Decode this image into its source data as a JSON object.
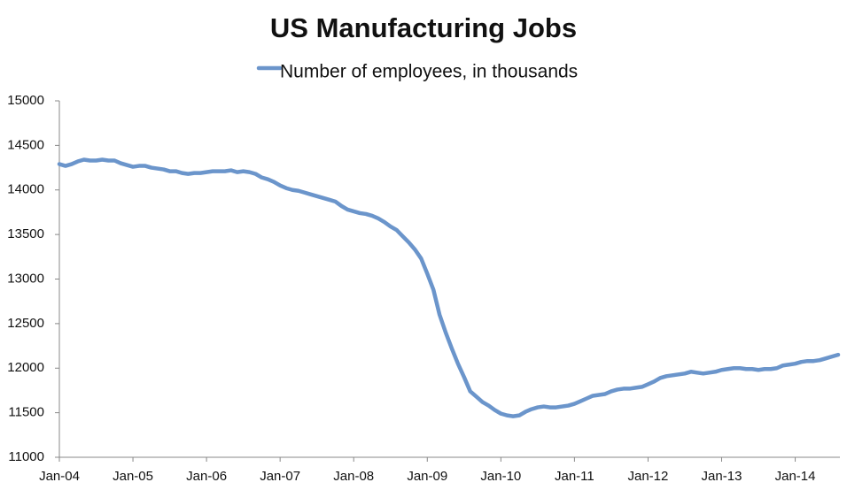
{
  "chart_data": {
    "type": "line",
    "title": "US Manufacturing Jobs",
    "categories": [
      "Jan-04",
      null,
      null,
      null,
      null,
      null,
      null,
      null,
      null,
      null,
      null,
      null,
      "Jan-05",
      null,
      null,
      null,
      null,
      null,
      null,
      null,
      null,
      null,
      null,
      null,
      "Jan-06",
      null,
      null,
      null,
      null,
      null,
      null,
      null,
      null,
      null,
      null,
      null,
      "Jan-07",
      null,
      null,
      null,
      null,
      null,
      null,
      null,
      null,
      null,
      null,
      null,
      "Jan-08",
      null,
      null,
      null,
      null,
      null,
      null,
      null,
      null,
      null,
      null,
      null,
      "Jan-09",
      null,
      null,
      null,
      null,
      null,
      null,
      null,
      null,
      null,
      null,
      null,
      "Jan-10",
      null,
      null,
      null,
      null,
      null,
      null,
      null,
      null,
      null,
      null,
      null,
      "Jan-11",
      null,
      null,
      null,
      null,
      null,
      null,
      null,
      null,
      null,
      null,
      null,
      "Jan-12",
      null,
      null,
      null,
      null,
      null,
      null,
      null,
      null,
      null,
      null,
      null,
      "Jan-13",
      null,
      null,
      null,
      null,
      null,
      null,
      null,
      null,
      null,
      null,
      null,
      "Jan-14",
      null,
      null,
      null,
      null,
      null,
      null,
      null
    ],
    "series": [
      {
        "name": "Number of employees, in thousands",
        "color": "#6b95cb",
        "values": [
          14290,
          14270,
          14290,
          14320,
          14340,
          14330,
          14330,
          14340,
          14330,
          14330,
          14300,
          14280,
          14260,
          14270,
          14270,
          14250,
          14240,
          14230,
          14210,
          14210,
          14190,
          14180,
          14190,
          14190,
          14200,
          14210,
          14210,
          14210,
          14220,
          14200,
          14210,
          14200,
          14180,
          14140,
          14120,
          14090,
          14050,
          14020,
          14000,
          13990,
          13970,
          13950,
          13930,
          13910,
          13890,
          13870,
          13820,
          13780,
          13760,
          13740,
          13730,
          13710,
          13680,
          13640,
          13590,
          13550,
          13480,
          13410,
          13330,
          13230,
          13060,
          12880,
          12600,
          12400,
          12220,
          12050,
          11900,
          11740,
          11680,
          11620,
          11580,
          11530,
          11490,
          11470,
          11460,
          11470,
          11510,
          11540,
          11560,
          11570,
          11560,
          11560,
          11570,
          11580,
          11600,
          11630,
          11660,
          11690,
          11700,
          11710,
          11740,
          11760,
          11770,
          11770,
          11780,
          11790,
          11820,
          11850,
          11890,
          11910,
          11920,
          11930,
          11940,
          11960,
          11950,
          11940,
          11950,
          11960,
          11980,
          11990,
          12000,
          12000,
          11990,
          11990,
          11980,
          11990,
          11990,
          12000,
          12030,
          12040,
          12050,
          12070,
          12080,
          12080,
          12090,
          12110,
          12130,
          12150
        ]
      }
    ],
    "ylim": [
      11000,
      15000
    ],
    "yticks": [
      11000,
      11500,
      12000,
      12500,
      13000,
      13500,
      14000,
      14500,
      15000
    ],
    "grid": false,
    "legend": "top"
  }
}
